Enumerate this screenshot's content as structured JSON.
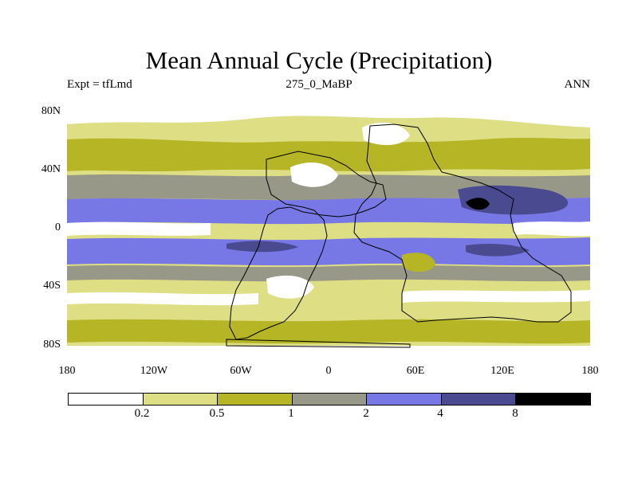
{
  "title": "Mean Annual Cycle (Precipitation)",
  "subtitle_left": "Expt = tfLmd",
  "subtitle_center": "275_0_MaBP",
  "subtitle_right": "ANN",
  "map": {
    "lat_ticks": [
      {
        "label": "80N",
        "lat": 80
      },
      {
        "label": "40N",
        "lat": 40
      },
      {
        "label": "0",
        "lat": 0
      },
      {
        "label": "40S",
        "lat": -40
      },
      {
        "label": "80S",
        "lat": -80
      }
    ],
    "lon_ticks": [
      {
        "label": "180",
        "lon": -180
      },
      {
        "label": "120W",
        "lon": -120
      },
      {
        "label": "60W",
        "lon": -60
      },
      {
        "label": "0",
        "lon": 0
      },
      {
        "label": "60E",
        "lon": 60
      },
      {
        "label": "120E",
        "lon": 120
      },
      {
        "label": "180",
        "lon": 180
      }
    ],
    "lon_range": [
      -180,
      180
    ],
    "lat_range": [
      -90,
      90
    ]
  },
  "colorbar": {
    "colors": [
      "#ffffff",
      "#dede84",
      "#b5b526",
      "#989888",
      "#7777e6",
      "#4a4a90",
      "#000000"
    ],
    "labels": [
      "0.2",
      "0.5",
      "1",
      "2",
      "4",
      "8"
    ]
  }
}
